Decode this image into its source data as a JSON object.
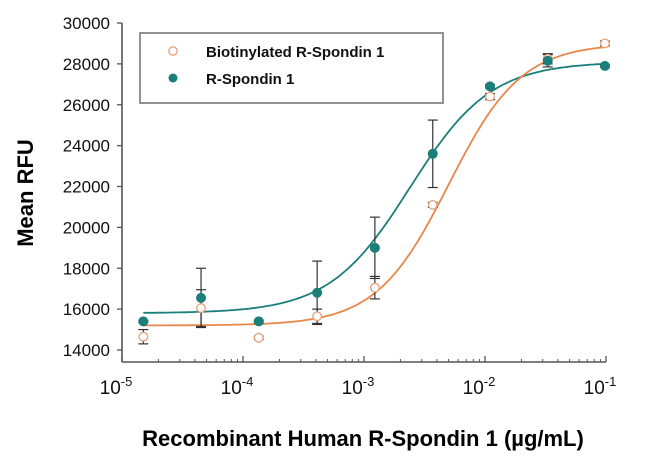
{
  "chart_data": {
    "type": "scatter",
    "title": "",
    "xlabel": "Recombinant Human R-Spondin 1 (µg/mL)",
    "ylabel": "Mean RFU",
    "xscale": "log",
    "xlim": [
      1e-05,
      0.1
    ],
    "ylim": [
      14000,
      30000
    ],
    "x_ticks": [
      {
        "value": 1e-05,
        "base": "10",
        "exp": "-5"
      },
      {
        "value": 0.0001,
        "base": "10",
        "exp": "-4"
      },
      {
        "value": 0.001,
        "base": "10",
        "exp": "-3"
      },
      {
        "value": 0.01,
        "base": "10",
        "exp": "-2"
      },
      {
        "value": 0.1,
        "base": "10",
        "exp": "-1"
      }
    ],
    "y_ticks": [
      14000,
      16000,
      18000,
      20000,
      22000,
      24000,
      26000,
      28000,
      30000
    ],
    "grid": false,
    "legend": {
      "position": "top-left",
      "entries": [
        "Biotinylated R-Spondin 1",
        "R-Spondin 1"
      ]
    },
    "x": [
      1.5e-05,
      4.5e-05,
      0.000135,
      0.00041,
      0.00123,
      0.0037,
      0.011,
      0.033,
      0.098
    ],
    "series": [
      {
        "name": "Biotinylated R-Spondin 1",
        "color": "#e8874a",
        "marker": "open-circle",
        "values": [
          14650,
          16050,
          14600,
          15650,
          17050,
          21100,
          26400,
          28250,
          29000
        ],
        "errors": [
          350,
          900,
          80,
          350,
          550,
          120,
          150,
          250,
          120
        ],
        "fit": {
          "bottom": 15200,
          "top": 29000,
          "log_ec50": -2.3,
          "hill": 1.45
        }
      },
      {
        "name": "R-Spondin 1",
        "color": "#1a7f7a",
        "marker": "filled-circle",
        "values": [
          15400,
          16550,
          15400,
          16800,
          19000,
          23600,
          26900,
          28150,
          27900
        ],
        "errors": [
          50,
          1450,
          60,
          1550,
          1500,
          1650,
          80,
          300,
          60
        ],
        "fit": {
          "bottom": 15800,
          "top": 28100,
          "log_ec50": -2.62,
          "hill": 1.3
        }
      }
    ]
  }
}
